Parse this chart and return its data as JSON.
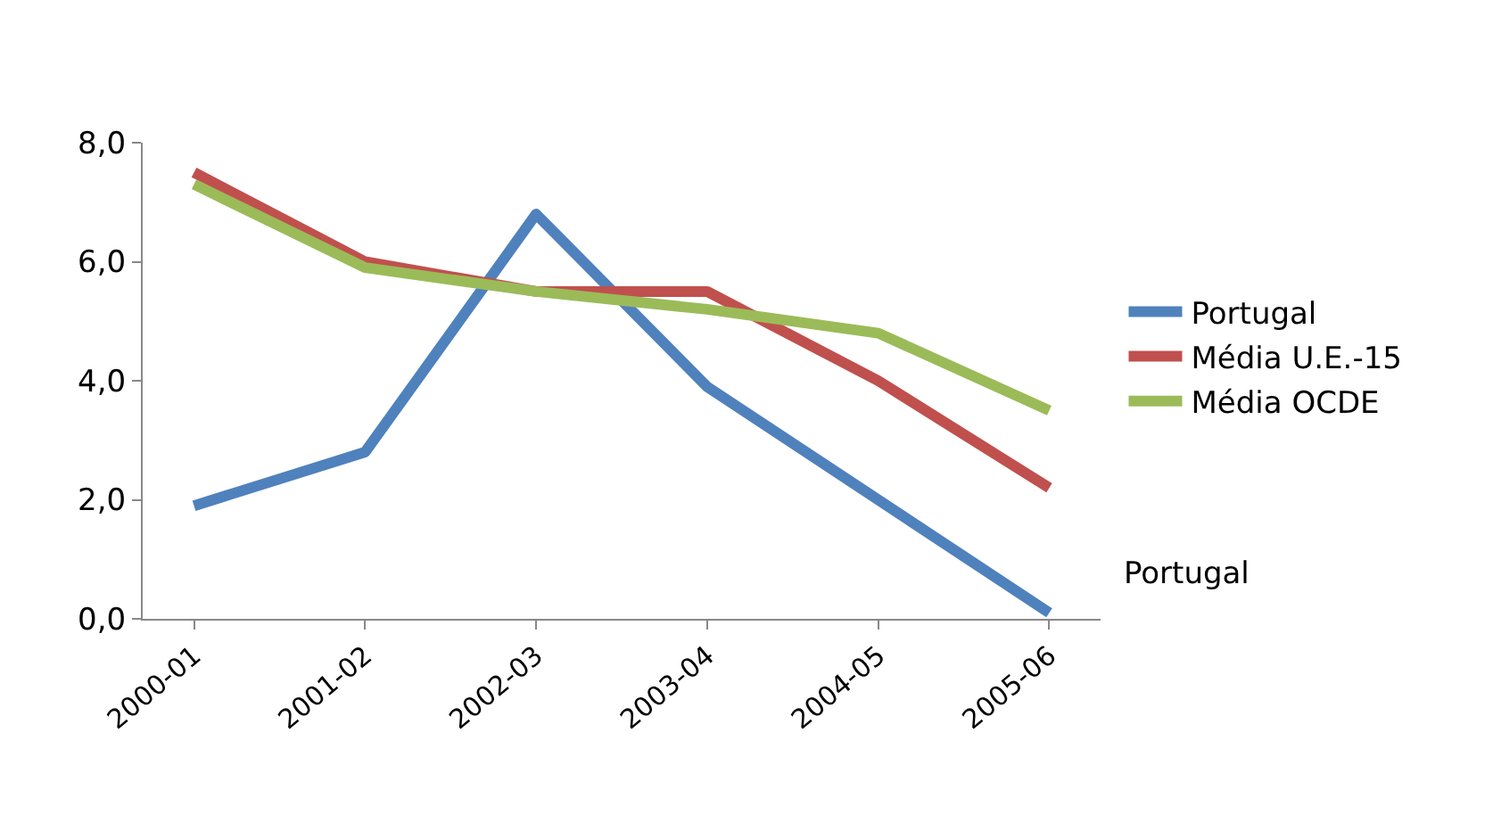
{
  "chart_data": {
    "type": "line",
    "categories": [
      "2000-01",
      "2001-02",
      "2002-03",
      "2003-04",
      "2004-05",
      "2005-06"
    ],
    "series": [
      {
        "name": "Portugal",
        "color": "#4f81bd",
        "values": [
          1.9,
          2.8,
          6.8,
          3.9,
          2.0,
          0.1
        ]
      },
      {
        "name": "Média U.E.-15",
        "color": "#c0504d",
        "values": [
          7.5,
          6.0,
          5.5,
          5.5,
          4.0,
          2.2
        ]
      },
      {
        "name": "Média OCDE",
        "color": "#9bbb59",
        "values": [
          7.3,
          5.9,
          5.5,
          5.2,
          4.8,
          3.5
        ]
      }
    ],
    "ylim": [
      0,
      8
    ],
    "yticks": [
      {
        "value": 0,
        "label": "0,0"
      },
      {
        "value": 2,
        "label": "2,0"
      },
      {
        "value": 4,
        "label": "4,0"
      },
      {
        "value": 6,
        "label": "6,0"
      },
      {
        "value": 8,
        "label": "8,0"
      }
    ],
    "annotations": [
      "Portugal"
    ],
    "grid": false,
    "legend": "right",
    "marker": "none",
    "line_style": "solid"
  }
}
